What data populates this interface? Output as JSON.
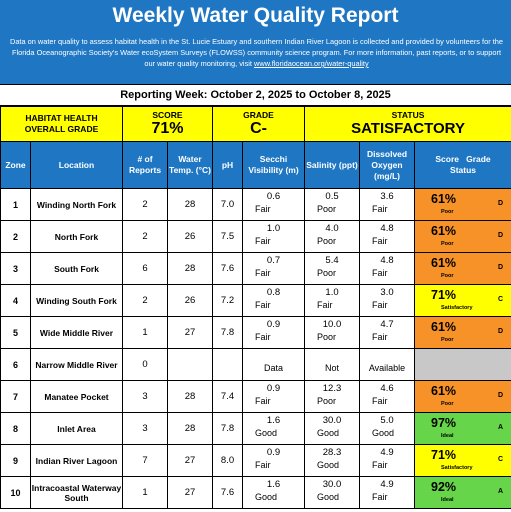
{
  "header": {
    "title": "Weekly Water Quality Report",
    "description": "Data on water quality to assess habitat health in the St. Lucie Estuary and southern Indian River Lagoon is collected and provided by volunteers for the Florida Oceanographic Society's Water ecoSystem Surveys (FLOWSS) community science program.  For more information, past reports, or to support our water quality monitoring, visit ",
    "link": "www.floridaocean.org/water-quality"
  },
  "reporting_week": "Reporting Week: October 2, 2025 to October 8, 2025",
  "summary": {
    "label_line1": "HABITAT HEALTH",
    "label_line2": "OVERALL GRADE",
    "score_title": "SCORE",
    "score_value": "71%",
    "grade_title": "GRADE",
    "grade_value": "C-",
    "status_title": "STATUS",
    "status_value": "SATISFACTORY"
  },
  "columns": {
    "zone": "Zone",
    "location": "Location",
    "reports": "# of Reports",
    "temp": "Water Temp. (°C)",
    "ph": "pH",
    "secchi": "Secchi Visibility (m)",
    "salinity": "Salinity (ppt)",
    "oxygen": "Dissolved Oxygen (mg/L)",
    "score_grade": "Score   Grade",
    "status": "Status"
  },
  "colors": {
    "header_blue": "#1f77c4",
    "poor": "#f79229",
    "satisfactory": "#ffff00",
    "ideal": "#66d54a",
    "no_data": "#c8c8c8"
  },
  "rows": [
    {
      "zone": "1",
      "location": "Winding North Fork",
      "reports": "2",
      "temp": "28",
      "ph": "7.0",
      "secchi": "0.6",
      "secchi_r": "Fair",
      "sal": "0.5",
      "sal_r": "Poor",
      "do": "3.6",
      "do_r": "Fair",
      "score": "61%",
      "grade": "D",
      "status": "Poor",
      "class": "poor"
    },
    {
      "zone": "2",
      "location": "North Fork",
      "reports": "2",
      "temp": "26",
      "ph": "7.5",
      "secchi": "1.0",
      "secchi_r": "Fair",
      "sal": "4.0",
      "sal_r": "Poor",
      "do": "4.8",
      "do_r": "Fair",
      "score": "61%",
      "grade": "D",
      "status": "Poor",
      "class": "poor"
    },
    {
      "zone": "3",
      "location": "South Fork",
      "reports": "6",
      "temp": "28",
      "ph": "7.6",
      "secchi": "0.7",
      "secchi_r": "Fair",
      "sal": "5.4",
      "sal_r": "Poor",
      "do": "4.8",
      "do_r": "Fair",
      "score": "61%",
      "grade": "D",
      "status": "Poor",
      "class": "poor"
    },
    {
      "zone": "4",
      "location": "Winding South Fork",
      "reports": "2",
      "temp": "26",
      "ph": "7.2",
      "secchi": "0.8",
      "secchi_r": "Fair",
      "sal": "1.0",
      "sal_r": "Fair",
      "do": "3.0",
      "do_r": "Fair",
      "score": "71%",
      "grade": "C",
      "status": "Satisfactory",
      "class": "sat"
    },
    {
      "zone": "5",
      "location": "Wide Middle River",
      "reports": "1",
      "temp": "27",
      "ph": "7.8",
      "secchi": "0.9",
      "secchi_r": "Fair",
      "sal": "10.0",
      "sal_r": "Poor",
      "do": "4.7",
      "do_r": "Fair",
      "score": "61%",
      "grade": "D",
      "status": "Poor",
      "class": "poor"
    },
    {
      "zone": "6",
      "location": "Narrow Middle River",
      "reports": "0",
      "temp": "",
      "ph": "",
      "secchi": "",
      "secchi_r": "Data",
      "sal": "",
      "sal_r": "Not",
      "do": "",
      "do_r": "Available",
      "score": "",
      "grade": "",
      "status": "",
      "class": "nodata"
    },
    {
      "zone": "7",
      "location": "Manatee Pocket",
      "reports": "3",
      "temp": "28",
      "ph": "7.4",
      "secchi": "0.9",
      "secchi_r": "Fair",
      "sal": "12.3",
      "sal_r": "Poor",
      "do": "4.6",
      "do_r": "Fair",
      "score": "61%",
      "grade": "D",
      "status": "Poor",
      "class": "poor"
    },
    {
      "zone": "8",
      "location": "Inlet Area",
      "reports": "3",
      "temp": "28",
      "ph": "7.8",
      "secchi": "1.6",
      "secchi_r": "Good",
      "sal": "30.0",
      "sal_r": "Good",
      "do": "5.0",
      "do_r": "Good",
      "score": "97%",
      "grade": "A",
      "status": "Ideal",
      "class": "ideal"
    },
    {
      "zone": "9",
      "location": "Indian River Lagoon",
      "reports": "7",
      "temp": "27",
      "ph": "8.0",
      "secchi": "0.9",
      "secchi_r": "Fair",
      "sal": "28.3",
      "sal_r": "Good",
      "do": "4.9",
      "do_r": "Fair",
      "score": "71%",
      "grade": "C",
      "status": "Satisfactory",
      "class": "sat"
    },
    {
      "zone": "10",
      "location": "Intracoastal Waterway South",
      "reports": "1",
      "temp": "27",
      "ph": "7.6",
      "secchi": "1.6",
      "secchi_r": "Good",
      "sal": "30.0",
      "sal_r": "Good",
      "do": "4.9",
      "do_r": "Fair",
      "score": "92%",
      "grade": "A",
      "status": "Ideal",
      "class": "ideal"
    }
  ]
}
